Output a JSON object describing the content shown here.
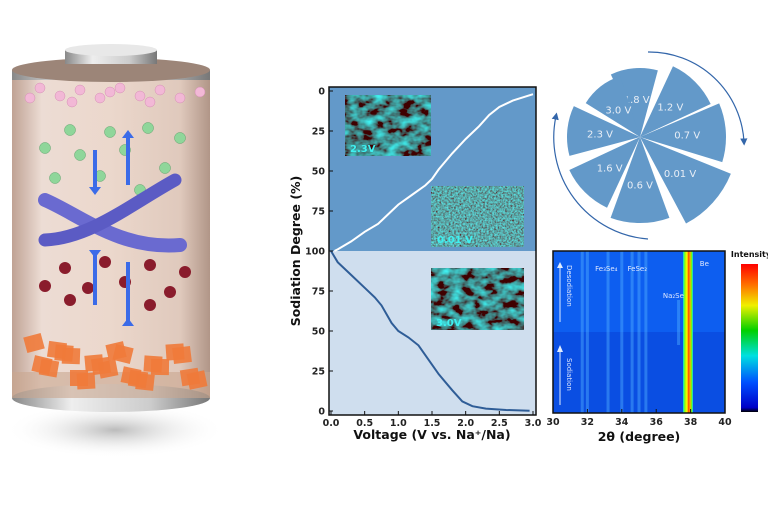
{
  "battery_illustration": {
    "colors": {
      "top_spheres": "#f2b8d6",
      "green_spheres": "#8fd69a",
      "red_spheres": "#8a1c2c",
      "cubes": "#f07a3a",
      "fiber": "#6a6ad0",
      "arrows": "#3b6be8"
    }
  },
  "chart_data": [
    {
      "type": "line",
      "xlabel": "Voltage (V vs. Na⁺/Na)",
      "ylabel": "Sodiation Degree (%)",
      "xlim": [
        0,
        3.0
      ],
      "x_ticks": [
        "0.0",
        "0.5",
        "1.0",
        "1.5",
        "2.0",
        "2.5",
        "3.0"
      ],
      "upper_panel": {
        "y_ticks": [
          "0",
          "25",
          "50",
          "75",
          "100"
        ],
        "ylim": [
          100,
          0
        ],
        "background": "#6399c9",
        "line_color": "#ffffff",
        "points": [
          [
            0.05,
            100
          ],
          [
            0.1,
            99
          ],
          [
            0.3,
            94
          ],
          [
            0.5,
            88
          ],
          [
            0.7,
            83
          ],
          [
            0.8,
            79
          ],
          [
            1.0,
            71
          ],
          [
            1.2,
            65
          ],
          [
            1.4,
            59
          ],
          [
            1.5,
            55
          ],
          [
            1.6,
            49
          ],
          [
            1.8,
            39
          ],
          [
            2.0,
            30
          ],
          [
            2.2,
            22
          ],
          [
            2.35,
            15
          ],
          [
            2.5,
            10
          ],
          [
            2.7,
            6
          ],
          [
            3.0,
            2
          ]
        ]
      },
      "lower_panel": {
        "y_ticks": [
          "100",
          "75",
          "50",
          "25",
          "0"
        ],
        "ylim": [
          0,
          100
        ],
        "background": "#cfdeee",
        "line_color": "#2f5d97",
        "points": [
          [
            0.0,
            100
          ],
          [
            0.1,
            93
          ],
          [
            0.3,
            85
          ],
          [
            0.5,
            77
          ],
          [
            0.65,
            71
          ],
          [
            0.75,
            66
          ],
          [
            0.9,
            55
          ],
          [
            1.0,
            50
          ],
          [
            1.15,
            46
          ],
          [
            1.3,
            41
          ],
          [
            1.45,
            32
          ],
          [
            1.6,
            23
          ],
          [
            1.8,
            13
          ],
          [
            1.95,
            6
          ],
          [
            2.1,
            3
          ],
          [
            2.3,
            1.5
          ],
          [
            2.6,
            0.6
          ],
          [
            2.95,
            0.2
          ]
        ]
      },
      "insets": [
        {
          "label": "2.3V"
        },
        {
          "label": "0.01 V"
        },
        {
          "label": "3.0V"
        }
      ]
    },
    {
      "type": "pie",
      "color": "#6399c9",
      "slices": [
        "1.8 V",
        "1.2 V",
        "0.7 V",
        "0.01 V",
        "0.6 V",
        "1.6 V",
        "2.3 V",
        "3.0 V"
      ]
    },
    {
      "type": "heatmap",
      "xlabel": "2θ (degree)",
      "xlim": [
        30,
        40
      ],
      "x_ticks": [
        "30",
        "32",
        "34",
        "36",
        "38",
        "40"
      ],
      "colorbar_label": "Intensity",
      "annotations": [
        {
          "text": "Fe₃Se₄",
          "x": 33.1
        },
        {
          "text": "FeSe₂",
          "x": 34.9
        },
        {
          "text": "Na₂Se",
          "x": 37.0
        },
        {
          "text": "Be",
          "x": 38.8
        }
      ],
      "side_labels": {
        "upper": "Desodiation",
        "lower": "Sodiation"
      },
      "peaks": [
        31.7,
        32.0,
        33.2,
        34.0,
        34.6,
        35.0,
        35.4,
        37.3
      ],
      "strong_peak": 37.85
    }
  ]
}
